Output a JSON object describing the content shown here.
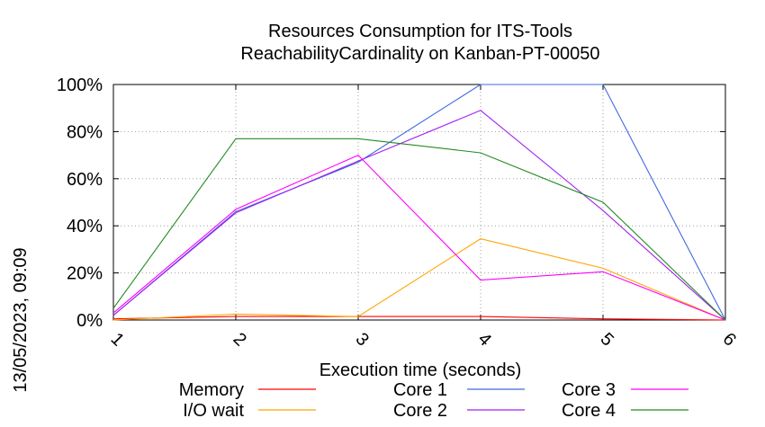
{
  "side_label": "13/05/2023, 09:09",
  "chart_data": {
    "type": "line",
    "title": "Resources Consumption for ITS-Tools",
    "subtitle": "ReachabilityCardinality on Kanban-PT-00050",
    "xlabel": "Execution time (seconds)",
    "ylabel": "",
    "x": [
      1,
      2,
      3,
      4,
      5,
      6
    ],
    "xlim": [
      1,
      6
    ],
    "ylim": [
      0,
      100
    ],
    "yticks": [
      0,
      20,
      40,
      60,
      80,
      100
    ],
    "ytick_labels": [
      "0%",
      "20%",
      "40%",
      "60%",
      "80%",
      "100%"
    ],
    "xtick_labels": [
      "1",
      "2",
      "3",
      "4",
      "5",
      "6"
    ],
    "grid": true,
    "legend_position": "bottom",
    "series": [
      {
        "name": "Memory",
        "color": "#ff0000",
        "values": [
          0.5,
          1.5,
          1.5,
          1.5,
          0.5,
          0
        ]
      },
      {
        "name": "I/O wait",
        "color": "#ffa500",
        "values": [
          0,
          2.5,
          1.5,
          34.5,
          22,
          0
        ]
      },
      {
        "name": "Core 1",
        "color": "#4169e1",
        "values": [
          2,
          46,
          67,
          100,
          100,
          0
        ]
      },
      {
        "name": "Core 2",
        "color": "#a020f0",
        "values": [
          2,
          45.5,
          67.5,
          89,
          46.5,
          0
        ]
      },
      {
        "name": "Core 3",
        "color": "#ff00ff",
        "values": [
          3,
          47,
          70,
          17,
          20.5,
          0
        ]
      },
      {
        "name": "Core 4",
        "color": "#228b22",
        "values": [
          5,
          77,
          77,
          71,
          50,
          0
        ]
      }
    ]
  }
}
